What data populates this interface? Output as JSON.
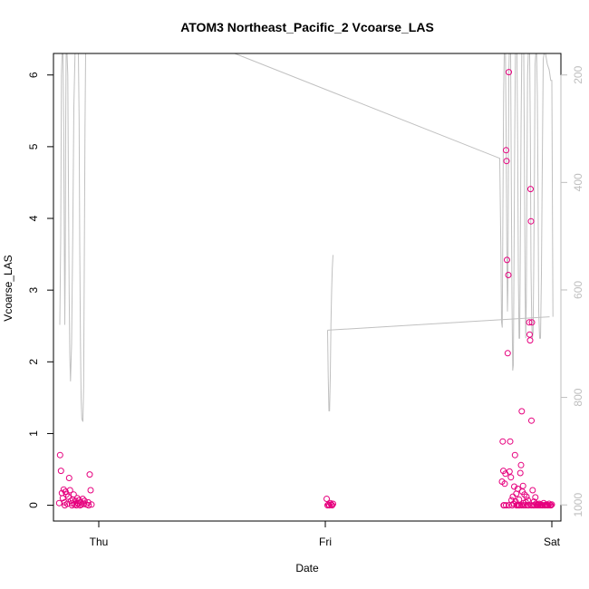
{
  "chart_data": {
    "type": "scatter",
    "title": "ATOM3 Northeast_Pacific_2 Vcoarse_LAS",
    "xlabel": "Date",
    "ylabel": "Vcoarse_LAS",
    "x_unit": "days (0 = Thu 00:00)",
    "xlim": [
      -0.2,
      2.04
    ],
    "ylim": [
      -0.22,
      6.3
    ],
    "x_ticks": [
      {
        "value": 0,
        "label": "Thu"
      },
      {
        "value": 1,
        "label": "Fri"
      },
      {
        "value": 2,
        "label": "Sat"
      }
    ],
    "y_ticks": [
      0,
      1,
      2,
      3,
      4,
      5,
      6
    ],
    "secondary_axis": {
      "side": "right",
      "label": "",
      "reversed": true,
      "lim": [
        160,
        1030
      ],
      "ticks": [
        200,
        400,
        600,
        800,
        1000
      ],
      "color": "#bebebe"
    },
    "series": [
      {
        "name": "",
        "kind": "points",
        "marker": "open-circle",
        "color": "#e6007e",
        "points": [
          [
            -0.171,
            0.7
          ],
          [
            -0.167,
            0.48
          ],
          [
            -0.163,
            0.17
          ],
          [
            -0.159,
            0.1
          ],
          [
            -0.155,
            0.22
          ],
          [
            -0.151,
            0.04
          ],
          [
            -0.147,
            0.19
          ],
          [
            -0.143,
            0.15
          ],
          [
            -0.139,
            0.02
          ],
          [
            -0.135,
            0.12
          ],
          [
            -0.131,
            0.38
          ],
          [
            -0.127,
            0.21
          ],
          [
            -0.123,
            0.06
          ],
          [
            -0.119,
            0.03
          ],
          [
            -0.115,
            0.08
          ],
          [
            -0.111,
            0.15
          ],
          [
            -0.107,
            0.01
          ],
          [
            -0.103,
            0.06
          ],
          [
            -0.099,
            0.0
          ],
          [
            -0.095,
            0.1
          ],
          [
            -0.091,
            0.02
          ],
          [
            -0.087,
            0.07
          ],
          [
            -0.083,
            0.0
          ],
          [
            -0.079,
            0.04
          ],
          [
            -0.075,
            0.01
          ],
          [
            -0.071,
            0.09
          ],
          [
            -0.067,
            0.02
          ],
          [
            -0.063,
            0.06
          ],
          [
            -0.055,
            0.01
          ],
          [
            -0.047,
            0.04
          ],
          [
            -0.04,
            0.43
          ],
          [
            -0.036,
            0.21
          ],
          [
            -0.032,
            0.01
          ],
          [
            -0.045,
            0.0
          ],
          [
            -0.15,
            0.0
          ],
          [
            -0.175,
            0.03
          ],
          [
            -0.118,
            0.0
          ],
          [
            -0.093,
            0.03
          ],
          [
            1.006,
            0.09
          ],
          [
            1.01,
            0.0
          ],
          [
            1.014,
            0.01
          ],
          [
            1.018,
            0.0
          ],
          [
            1.022,
            0.03
          ],
          [
            1.026,
            0.01
          ],
          [
            1.03,
            0.0
          ],
          [
            1.034,
            0.02
          ],
          [
            1.78,
            0.33
          ],
          [
            1.783,
            0.89
          ],
          [
            1.786,
            0.48
          ],
          [
            1.789,
            0.0
          ],
          [
            1.792,
            0.3
          ],
          [
            1.795,
            0.44
          ],
          [
            1.798,
            4.95
          ],
          [
            1.8,
            4.8
          ],
          [
            1.802,
            3.42
          ],
          [
            1.805,
            2.12
          ],
          [
            1.808,
            3.21
          ],
          [
            1.81,
            6.04
          ],
          [
            1.813,
            0.47
          ],
          [
            1.816,
            0.89
          ],
          [
            1.819,
            0.39
          ],
          [
            1.822,
            0.07
          ],
          [
            1.825,
            0.0
          ],
          [
            1.828,
            0.12
          ],
          [
            1.831,
            0.02
          ],
          [
            1.834,
            0.26
          ],
          [
            1.837,
            0.7
          ],
          [
            1.84,
            0.05
          ],
          [
            1.843,
            0.16
          ],
          [
            1.846,
            0.0
          ],
          [
            1.849,
            0.23
          ],
          [
            1.852,
            0.0
          ],
          [
            1.855,
            0.08
          ],
          [
            1.858,
            0.0
          ],
          [
            1.861,
            0.45
          ],
          [
            1.864,
            0.56
          ],
          [
            1.867,
            1.31
          ],
          [
            1.87,
            0.19
          ],
          [
            1.873,
            0.27
          ],
          [
            1.876,
            0.03
          ],
          [
            1.879,
            0.15
          ],
          [
            1.882,
            0.0
          ],
          [
            1.885,
            0.04
          ],
          [
            1.888,
            0.12
          ],
          [
            1.891,
            0.0
          ],
          [
            1.894,
            0.07
          ],
          [
            1.897,
            0.0
          ],
          [
            1.9,
            2.55
          ],
          [
            1.902,
            2.38
          ],
          [
            1.904,
            2.3
          ],
          [
            1.906,
            4.41
          ],
          [
            1.908,
            3.96
          ],
          [
            1.91,
            1.18
          ],
          [
            1.912,
            2.55
          ],
          [
            1.915,
            0.21
          ],
          [
            1.918,
            0.0
          ],
          [
            1.921,
            0.05
          ],
          [
            1.924,
            0.0
          ],
          [
            1.927,
            0.11
          ],
          [
            1.93,
            0.02
          ],
          [
            1.933,
            0.0
          ],
          [
            1.936,
            0.01
          ],
          [
            1.94,
            0.0
          ],
          [
            1.944,
            0.02
          ],
          [
            1.948,
            0.0
          ],
          [
            1.952,
            0.01
          ],
          [
            1.956,
            0.0
          ],
          [
            1.96,
            0.0
          ],
          [
            1.964,
            0.03
          ],
          [
            1.968,
            0.0
          ],
          [
            1.972,
            0.0
          ],
          [
            1.976,
            0.01
          ],
          [
            1.98,
            0.0
          ],
          [
            1.984,
            0.0
          ],
          [
            1.988,
            0.02
          ],
          [
            1.992,
            0.0
          ],
          [
            1.996,
            0.0
          ],
          [
            2.0,
            0.01
          ],
          [
            1.81,
            0.0
          ],
          [
            1.798,
            0.0
          ],
          [
            1.787,
            0.0
          ],
          [
            1.874,
            0.0
          ],
          [
            1.866,
            0.0
          ],
          [
            1.844,
            0.0
          ],
          [
            1.853,
            0.0
          ],
          [
            1.909,
            0.0
          ]
        ]
      },
      {
        "name": "",
        "kind": "line",
        "axis": "secondary",
        "color": "#c0c0c0",
        "segments": [
          [
            [
              -0.172,
              665
            ],
            [
              -0.168,
              500
            ],
            [
              -0.165,
              200
            ],
            [
              -0.162,
              160
            ],
            [
              -0.158,
              160
            ],
            [
              -0.155,
              300
            ],
            [
              -0.152,
              520
            ],
            [
              -0.15,
              665
            ],
            [
              -0.148,
              560
            ],
            [
              -0.146,
              300
            ],
            [
              -0.144,
              160
            ],
            [
              -0.14,
              160
            ],
            [
              -0.137,
              200
            ],
            [
              -0.134,
              400
            ],
            [
              -0.131,
              600
            ],
            [
              -0.128,
              720
            ],
            [
              -0.125,
              770
            ],
            [
              -0.12,
              700
            ],
            [
              -0.115,
              500
            ],
            [
              -0.11,
              260
            ],
            [
              -0.105,
              160
            ],
            [
              -0.09,
              160
            ],
            [
              -0.087,
              280
            ],
            [
              -0.084,
              520
            ],
            [
              -0.081,
              700
            ],
            [
              -0.078,
              800
            ],
            [
              -0.075,
              840
            ],
            [
              -0.07,
              845
            ],
            [
              -0.067,
              780
            ],
            [
              -0.064,
              560
            ],
            [
              -0.061,
              300
            ],
            [
              -0.058,
              160
            ],
            [
              -0.052,
              160
            ]
          ],
          [
            [
              0.0,
              160
            ],
            [
              0.6,
              160
            ],
            [
              0.6,
              160
            ],
            [
              1.77,
              355
            ],
            [
              1.775,
              520
            ],
            [
              1.778,
              660
            ],
            [
              1.781,
              670
            ],
            [
              1.784,
              450
            ],
            [
              1.787,
              230
            ],
            [
              1.79,
              160
            ],
            [
              1.795,
              160
            ],
            [
              1.798,
              300
            ],
            [
              1.801,
              520
            ],
            [
              1.804,
              640
            ],
            [
              1.806,
              600
            ],
            [
              1.808,
              400
            ],
            [
              1.81,
              200
            ],
            [
              1.812,
              160
            ],
            [
              1.818,
              160
            ],
            [
              1.821,
              380
            ],
            [
              1.824,
              620
            ],
            [
              1.827,
              750
            ],
            [
              1.83,
              740
            ],
            [
              1.833,
              560
            ],
            [
              1.836,
              320
            ],
            [
              1.839,
              160
            ],
            [
              1.846,
              160
            ],
            [
              1.849,
              330
            ],
            [
              1.852,
              560
            ],
            [
              1.855,
              690
            ],
            [
              1.858,
              690
            ],
            [
              1.861,
              520
            ],
            [
              1.864,
              300
            ],
            [
              1.867,
              160
            ],
            [
              1.876,
              160
            ],
            [
              1.879,
              380
            ],
            [
              1.882,
              600
            ],
            [
              1.885,
              690
            ],
            [
              1.887,
              620
            ],
            [
              1.89,
              400
            ],
            [
              1.893,
              200
            ],
            [
              1.896,
              160
            ],
            [
              1.902,
              160
            ],
            [
              1.905,
              320
            ],
            [
              1.908,
              560
            ],
            [
              1.911,
              660
            ],
            [
              1.914,
              690
            ],
            [
              1.917,
              680
            ],
            [
              1.92,
              560
            ],
            [
              1.923,
              380
            ],
            [
              1.926,
              180
            ],
            [
              1.929,
              160
            ],
            [
              1.933,
              160
            ],
            [
              1.936,
              240
            ],
            [
              1.939,
              430
            ],
            [
              1.942,
              640
            ],
            [
              1.946,
              690
            ],
            [
              1.95,
              690
            ],
            [
              1.954,
              570
            ],
            [
              1.958,
              360
            ],
            [
              1.962,
              170
            ],
            [
              1.966,
              160
            ],
            [
              1.972,
              160
            ],
            [
              1.98,
              180
            ],
            [
              1.988,
              190
            ],
            [
              1.995,
              210
            ],
            [
              2.0,
              210
            ],
            [
              2.005,
              650
            ]
          ],
          [
            [
              1.01,
              675
            ],
            [
              1.013,
              760
            ],
            [
              1.016,
              825
            ],
            [
              1.019,
              825
            ],
            [
              1.022,
              760
            ],
            [
              1.025,
              665
            ],
            [
              1.028,
              600
            ],
            [
              1.031,
              560
            ],
            [
              1.034,
              535
            ]
          ],
          [
            [
              1.01,
              675
            ],
            [
              1.99,
              650
            ]
          ]
        ]
      }
    ]
  }
}
